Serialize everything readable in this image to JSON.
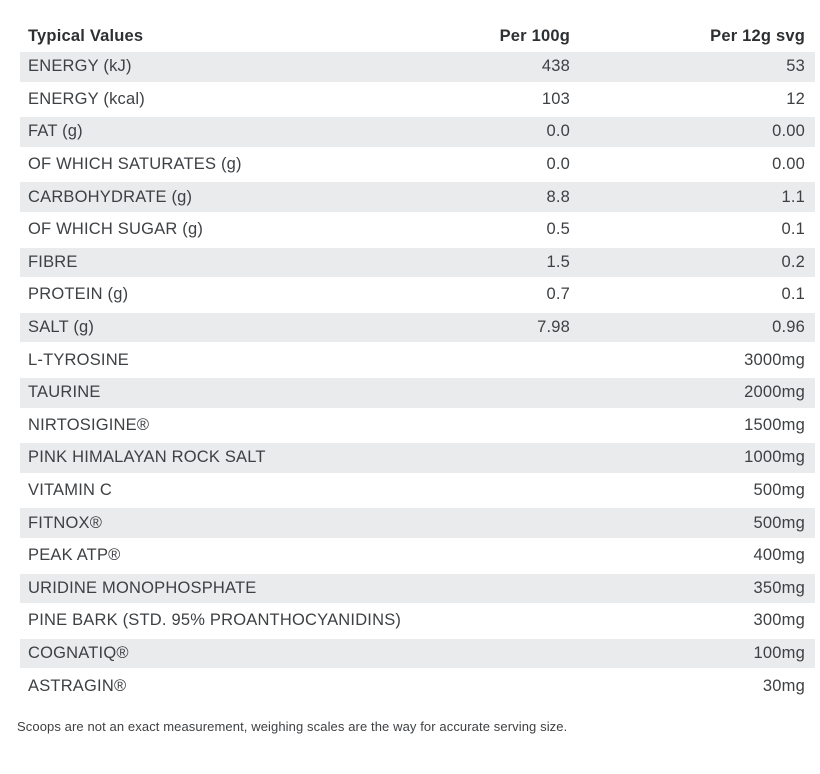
{
  "colors": {
    "row_alt_bg": "#e9ebec",
    "text": "#3e4144",
    "header_text": "#2d3033"
  },
  "table": {
    "header": {
      "col1": "Typical Values",
      "col2": "Per 100g",
      "col3": "Per 12g svg"
    },
    "rows": [
      {
        "label": "ENERGY (kJ)",
        "per100g": "438",
        "per12g": "53"
      },
      {
        "label": "ENERGY (kcal)",
        "per100g": "103",
        "per12g": "12"
      },
      {
        "label": "FAT (g)",
        "per100g": "0.0",
        "per12g": "0.00"
      },
      {
        "label": "OF WHICH SATURATES (g)",
        "per100g": "0.0",
        "per12g": "0.00"
      },
      {
        "label": "CARBOHYDRATE (g)",
        "per100g": "8.8",
        "per12g": "1.1"
      },
      {
        "label": "OF WHICH SUGAR (g)",
        "per100g": "0.5",
        "per12g": "0.1"
      },
      {
        "label": "FIBRE",
        "per100g": "1.5",
        "per12g": "0.2"
      },
      {
        "label": "PROTEIN (g)",
        "per100g": "0.7",
        "per12g": "0.1"
      },
      {
        "label": "SALT (g)",
        "per100g": "7.98",
        "per12g": "0.96"
      },
      {
        "label": "L-TYROSINE",
        "per100g": "",
        "per12g": "3000mg"
      },
      {
        "label": "TAURINE",
        "per100g": "",
        "per12g": "2000mg"
      },
      {
        "label": "NIRTOSIGINE®",
        "per100g": "",
        "per12g": "1500mg"
      },
      {
        "label": "PINK HIMALAYAN ROCK SALT",
        "per100g": "",
        "per12g": "1000mg"
      },
      {
        "label": "VITAMIN C",
        "per100g": "",
        "per12g": "500mg"
      },
      {
        "label": "FITNOX®",
        "per100g": "",
        "per12g": "500mg"
      },
      {
        "label": "PEAK ATP®",
        "per100g": "",
        "per12g": "400mg"
      },
      {
        "label": "URIDINE MONOPHOSPHATE",
        "per100g": "",
        "per12g": "350mg"
      },
      {
        "label": "PINE BARK (STD. 95% PROANTHOCYANIDINS)",
        "per100g": "",
        "per12g": "300mg"
      },
      {
        "label": "COGNATIQ®",
        "per100g": "",
        "per12g": "100mg"
      },
      {
        "label": "ASTRAGIN®",
        "per100g": "",
        "per12g": "30mg"
      }
    ]
  },
  "footer": {
    "note": "Scoops are not an exact measurement, weighing scales are the way for accurate serving size."
  }
}
